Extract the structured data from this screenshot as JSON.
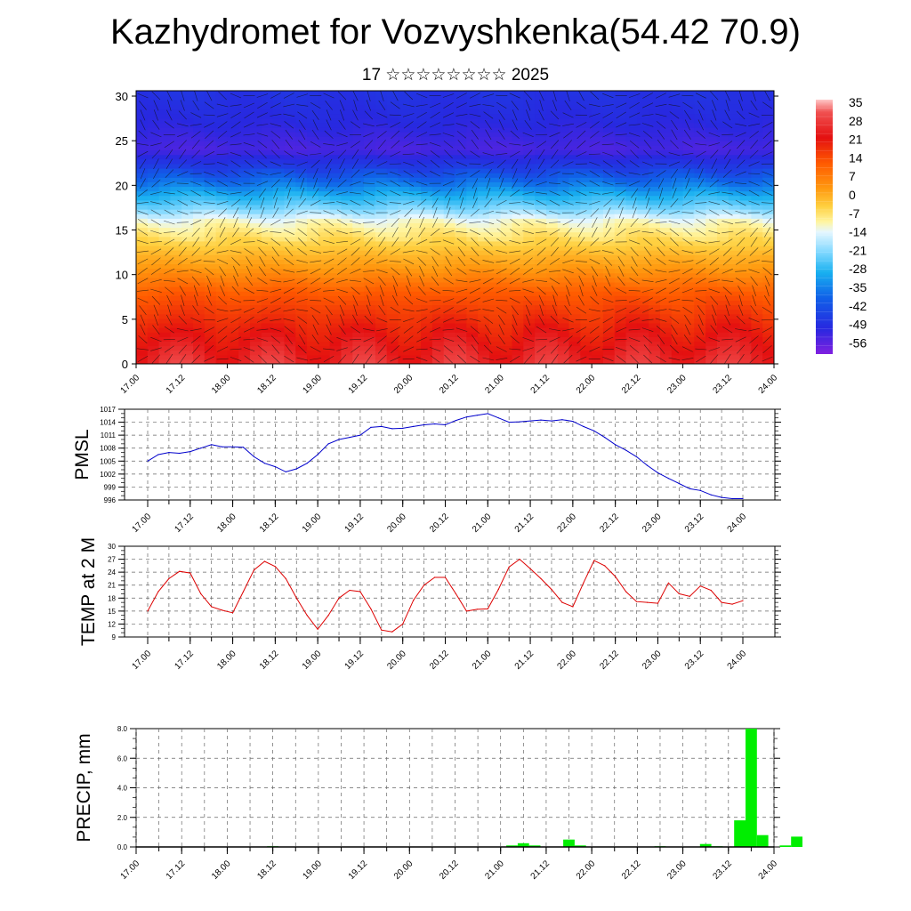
{
  "header": {
    "title": "Kazhydromet for Vozvyshkenka(54.42 70.9)",
    "subtitle": "17 ☆☆☆☆☆☆☆☆ 2025"
  },
  "colors": {
    "pmsl_line": "#0000cc",
    "temp_line": "#dd0000",
    "precip_bar": "#00ee00",
    "ref_line": "#333333"
  },
  "time_ticks": [
    "17.00",
    "17.12",
    "18.00",
    "18.12",
    "19.00",
    "19.12",
    "20.00",
    "20.12",
    "21.00",
    "21.12",
    "22.00",
    "22.12",
    "23.00",
    "23.12",
    "24.00"
  ],
  "chart_data": [
    {
      "type": "heatmap",
      "xlabel": "",
      "ylabel": "",
      "x_ticks": [
        "17.00",
        "17.12",
        "18.00",
        "18.12",
        "19.00",
        "19.12",
        "20.00",
        "20.12",
        "21.00",
        "21.12",
        "22.00",
        "22.12",
        "23.00",
        "23.12",
        "24.00"
      ],
      "y_ticks": [
        0,
        5,
        10,
        15,
        20,
        25,
        30
      ],
      "ylim": [
        0,
        30.6
      ],
      "colorbar_labels": [
        "35",
        "28",
        "21",
        "14",
        "7",
        "0",
        "-7",
        "-14",
        "-21",
        "-28",
        "-35",
        "-42",
        "-49",
        "-56"
      ],
      "colorbar_range": [
        -60,
        38
      ],
      "temperature_profile": {
        "levels": [
          0,
          4,
          8,
          12,
          16,
          18,
          20,
          22,
          24,
          27,
          30.6
        ],
        "values": [
          25,
          18,
          10,
          0,
          -12,
          -26,
          -38,
          -48,
          -55,
          -52,
          -50
        ]
      },
      "wind_arrows": true
    },
    {
      "type": "line",
      "ylabel": "PMSL",
      "x_ticks": [
        "17.00",
        "17.12",
        "18.00",
        "18.12",
        "19.00",
        "19.12",
        "20.00",
        "20.12",
        "21.00",
        "21.12",
        "22.00",
        "22.12",
        "23.00",
        "23.12",
        "24.00"
      ],
      "y_ticks": [
        996,
        999,
        1002,
        1005,
        1008,
        1011,
        1014,
        1017
      ],
      "ylim": [
        996,
        1017
      ],
      "x": [
        0,
        3,
        6,
        9,
        12,
        15,
        18,
        21,
        24,
        27,
        30,
        33,
        36,
        39,
        42,
        45,
        48,
        51,
        54,
        57,
        60,
        63,
        66,
        69,
        72,
        75,
        78,
        81,
        84,
        87,
        90,
        93,
        96,
        99,
        102,
        105,
        108,
        111,
        114,
        117,
        120,
        123,
        126,
        129,
        132,
        135,
        138,
        141,
        144,
        147,
        150,
        153,
        156,
        159,
        162,
        165,
        168
      ],
      "values": [
        1005,
        1006.5,
        1007,
        1006.8,
        1007.2,
        1008,
        1008.8,
        1008.3,
        1008.3,
        1008.2,
        1006,
        1004.5,
        1003.7,
        1002.5,
        1003.2,
        1004.5,
        1006.5,
        1009,
        1010,
        1010.5,
        1011,
        1012.8,
        1013,
        1012.5,
        1012.6,
        1013,
        1013.4,
        1013.6,
        1013.4,
        1014.4,
        1015.2,
        1015.6,
        1016,
        1015,
        1014,
        1014.1,
        1014.3,
        1014.5,
        1014.3,
        1014.6,
        1014.2,
        1013,
        1012,
        1010.5,
        1008.8,
        1007.5,
        1006,
        1004,
        1002.3,
        1001,
        999.8,
        998.6,
        998.2,
        997.2,
        996.6,
        996.3,
        996.3
      ]
    },
    {
      "type": "line",
      "ylabel": "TEMP at 2 M",
      "x_ticks": [
        "17.00",
        "17.12",
        "18.00",
        "18.12",
        "19.00",
        "19.12",
        "20.00",
        "20.12",
        "21.00",
        "21.12",
        "22.00",
        "22.12",
        "23.00",
        "23.12",
        "24.00"
      ],
      "y_ticks": [
        9,
        12,
        15,
        18,
        21,
        24,
        27,
        30
      ],
      "ylim": [
        9,
        30
      ],
      "x": [
        0,
        3,
        6,
        9,
        12,
        15,
        18,
        21,
        24,
        27,
        30,
        33,
        36,
        39,
        42,
        45,
        48,
        51,
        54,
        57,
        60,
        63,
        66,
        69,
        72,
        75,
        78,
        81,
        84,
        87,
        90,
        93,
        96,
        99,
        102,
        105,
        108,
        111,
        114,
        117,
        120,
        123,
        126,
        129,
        132,
        135,
        138,
        141,
        144,
        147,
        150,
        153,
        156,
        159,
        162,
        165,
        168
      ],
      "values": [
        15,
        19.5,
        22.5,
        24.2,
        23.8,
        19,
        16,
        15.2,
        14.6,
        19.5,
        24.5,
        26.5,
        25.3,
        22.5,
        18,
        14,
        10.8,
        14,
        18,
        19.8,
        19.5,
        15.5,
        10.6,
        10.2,
        12,
        17.5,
        21,
        22.8,
        22.8,
        19,
        15,
        15.4,
        15.5,
        20,
        25.2,
        27,
        24.8,
        22.5,
        20,
        17,
        16,
        21.5,
        26.7,
        25.5,
        23,
        19.5,
        17.2,
        17,
        16.8,
        21.5,
        19,
        18.4,
        20.8,
        19.8,
        17,
        16.6,
        17.4
      ]
    },
    {
      "type": "bar",
      "ylabel": "PRECIP, mm",
      "x_ticks": [
        "17.00",
        "17.12",
        "18.00",
        "18.12",
        "19.00",
        "19.12",
        "20.00",
        "20.12",
        "21.00",
        "21.12",
        "22.00",
        "22.12",
        "23.00",
        "23.12",
        "24.00"
      ],
      "y_ticks": [
        "0.0",
        "2.0",
        "4.0",
        "6.0",
        "8.0"
      ],
      "ylim": [
        0,
        8
      ],
      "bar_hours": [
        36,
        99,
        102,
        105,
        114,
        117,
        138,
        150,
        153,
        159,
        162,
        165,
        171,
        174
      ],
      "values": [
        0.05,
        0.1,
        0.25,
        0.1,
        0.5,
        0.1,
        0.05,
        0.2,
        0.05,
        1.8,
        8.0,
        0.8,
        0.1,
        0.7
      ]
    }
  ]
}
